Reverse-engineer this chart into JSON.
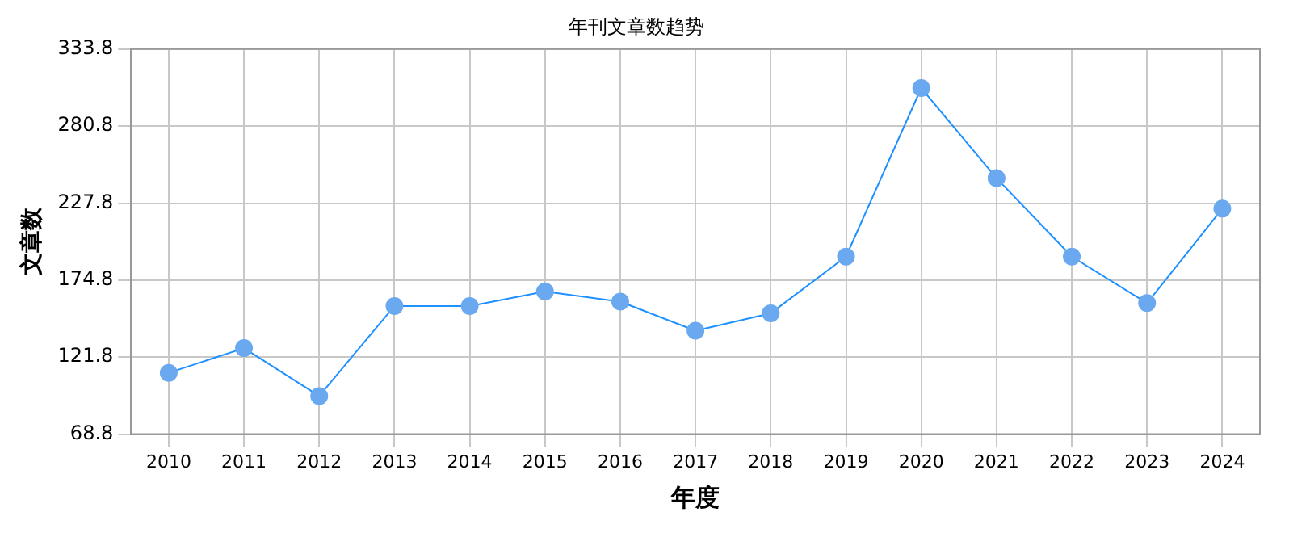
{
  "chart_data": {
    "type": "line",
    "title": "年刊文章数趋势",
    "xlabel": "年度",
    "ylabel": "文章数",
    "categories": [
      "2010",
      "2011",
      "2012",
      "2013",
      "2014",
      "2015",
      "2016",
      "2017",
      "2018",
      "2019",
      "2020",
      "2021",
      "2022",
      "2023",
      "2024"
    ],
    "series": [
      {
        "color": "#1e90ff",
        "values": [
          111,
          128,
          95,
          157,
          157,
          167,
          160,
          140,
          152,
          191,
          307,
          245,
          191,
          159,
          224
        ]
      }
    ],
    "ylim": [
      68.8,
      333.8
    ],
    "yticks": [
      68.8,
      121.8,
      174.8,
      227.8,
      280.8,
      333.8
    ],
    "grid": true,
    "marker": "circle",
    "line_style": "solid"
  }
}
